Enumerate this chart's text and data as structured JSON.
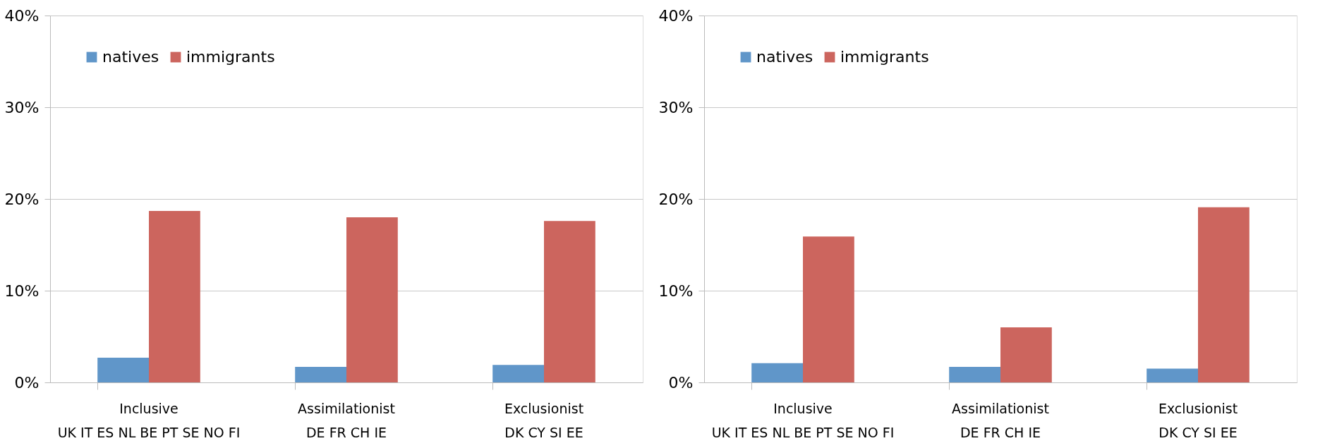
{
  "chart_data": [
    {
      "type": "bar",
      "categories": [
        "Inclusive\nUK IT ES NL BE PT SE NO FI",
        "Assimilationist\nDE FR CH IE",
        "Exclusionist\nDK CY SI EE"
      ],
      "series": [
        {
          "name": "natives",
          "color": "#6096c9",
          "values": [
            2.7,
            1.7,
            1.9
          ]
        },
        {
          "name": "immigrants",
          "color": "#cc655e",
          "values": [
            18.7,
            18.0,
            17.6
          ]
        }
      ],
      "ylim": [
        0,
        40
      ],
      "yticks": [
        {
          "value": 0,
          "label": "0%"
        },
        {
          "value": 10,
          "label": "10%"
        },
        {
          "value": 20,
          "label": "20%"
        },
        {
          "value": 30,
          "label": "30%"
        },
        {
          "value": 40,
          "label": "40%"
        }
      ],
      "grid": "y",
      "legend": "top left"
    },
    {
      "type": "bar",
      "categories": [
        "Inclusive\nUK IT ES NL BE PT SE NO FI",
        "Assimilationist\nDE FR CH IE",
        "Exclusionist\nDK CY SI EE"
      ],
      "series": [
        {
          "name": "natives",
          "color": "#6096c9",
          "values": [
            2.1,
            1.7,
            1.5
          ]
        },
        {
          "name": "immigrants",
          "color": "#cc655e",
          "values": [
            15.9,
            6.0,
            19.1
          ]
        }
      ],
      "ylim": [
        0,
        40
      ],
      "yticks": [
        {
          "value": 0,
          "label": "0%"
        },
        {
          "value": 10,
          "label": "10%"
        },
        {
          "value": 20,
          "label": "20%"
        },
        {
          "value": 30,
          "label": "30%"
        },
        {
          "value": 40,
          "label": "40%"
        }
      ],
      "grid": "y",
      "legend": "top left"
    }
  ]
}
